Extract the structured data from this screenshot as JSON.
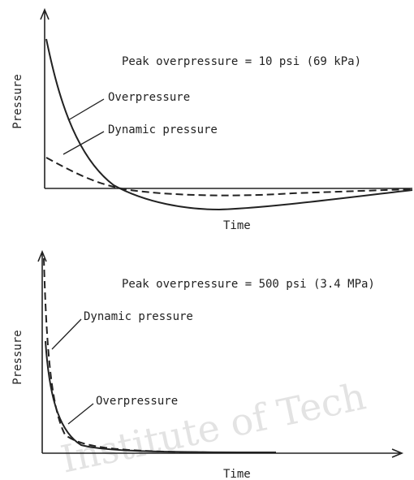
{
  "watermark": "Institute of Tech",
  "panels": [
    {
      "peak": "Peak overpressure = 10 psi (69 kPa)",
      "overpressure": "Overpressure",
      "dynamic": "Dynamic pressure",
      "y_label": "Pressure",
      "x_label": "Time"
    },
    {
      "peak": "Peak overpressure = 500 psi (3.4 MPa)",
      "overpressure": "Overpressure",
      "dynamic": "Dynamic pressure",
      "y_label": "Pressure",
      "x_label": "Time"
    }
  ]
}
